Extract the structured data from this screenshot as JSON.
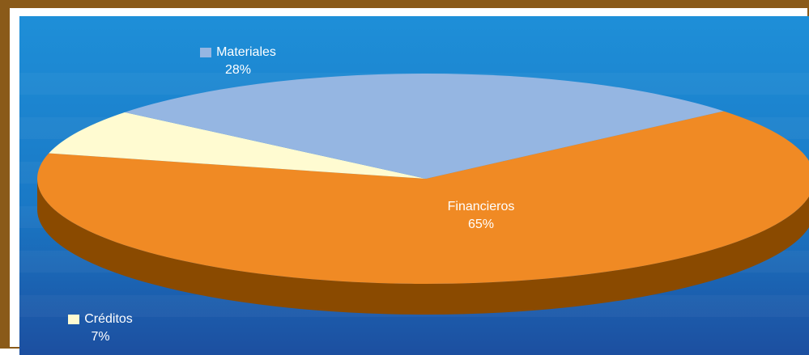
{
  "chart_data": {
    "type": "pie",
    "style": "3d",
    "title": "",
    "slices": [
      {
        "label": "Financieros",
        "percent_label": "65%",
        "value": 65,
        "color": "#f08a24",
        "side_color": "#8a4a00"
      },
      {
        "label": "Créditos",
        "percent_label": "7%",
        "value": 7,
        "color": "#fffbd1",
        "side_color": "#7d7d6a"
      },
      {
        "label": "Materiales",
        "percent_label": "28%",
        "value": 28,
        "color": "#95b6e2",
        "side_color": "#5f7fa6"
      }
    ],
    "legend": "labels-on-slices",
    "background": {
      "top": "#1e8fd8",
      "bottom": "#1c4fa0",
      "frame": "#8a5a19"
    }
  }
}
